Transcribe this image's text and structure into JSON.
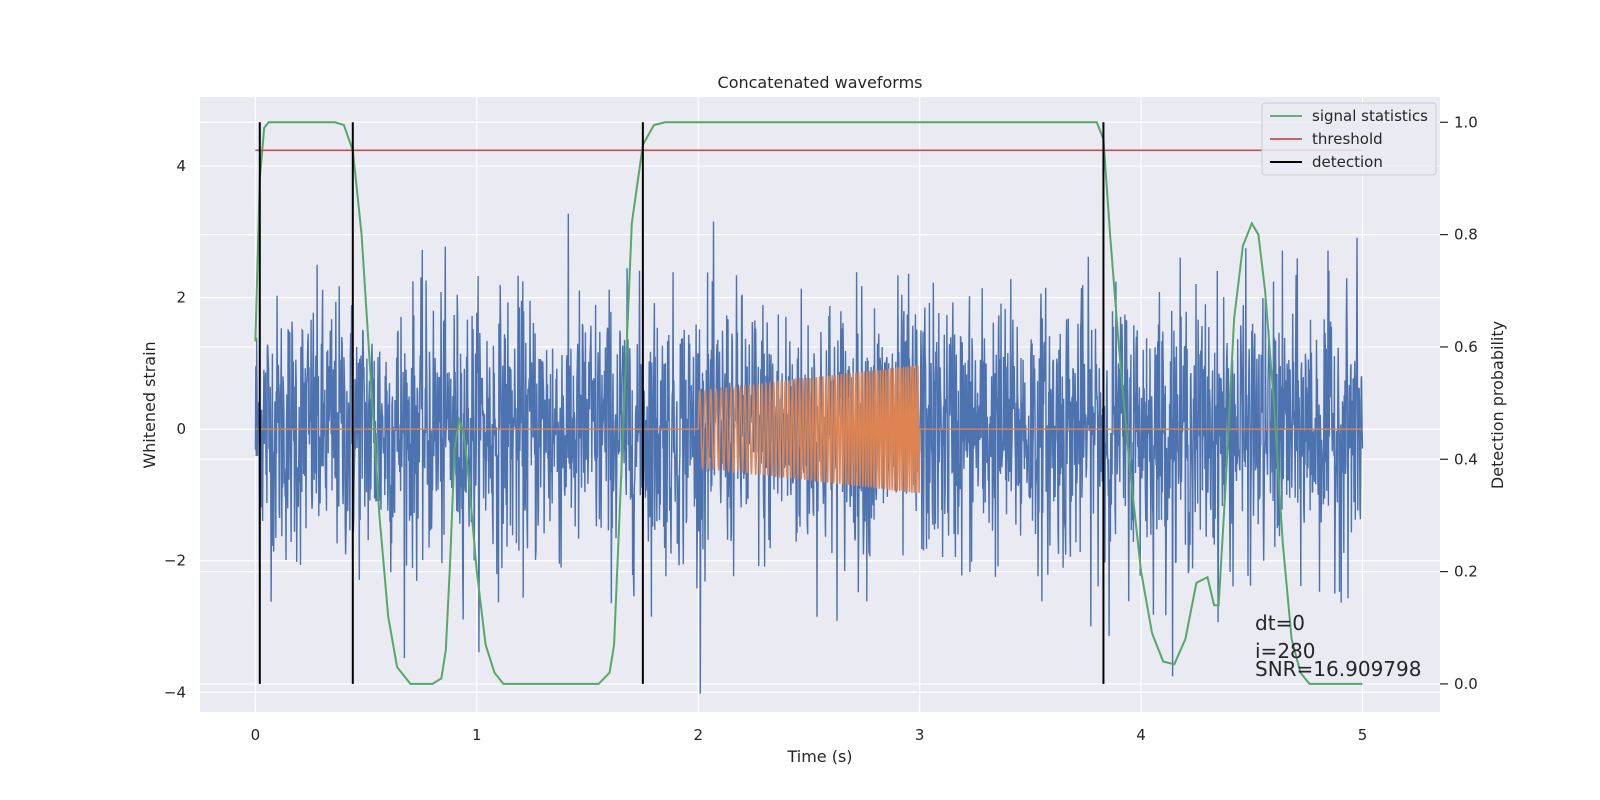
{
  "chart_data": {
    "type": "line",
    "title": "Concatenated waveforms",
    "xlabel": "Time (s)",
    "ylabel": "Whitened strain",
    "y2label": "Detection probability",
    "xlim": [
      -0.25,
      5.35
    ],
    "ylim": [
      -4.3,
      5.05
    ],
    "y2lim": [
      -0.05,
      1.045
    ],
    "xticks": [
      0,
      1,
      2,
      3,
      4,
      5
    ],
    "yticks": [
      -4,
      -2,
      0,
      2,
      4
    ],
    "y2ticks": [
      0.0,
      0.2,
      0.4,
      0.6,
      0.8,
      1.0
    ],
    "xtick_labels": [
      "0",
      "1",
      "2",
      "3",
      "4",
      "5"
    ],
    "ytick_labels": [
      "−4",
      "−2",
      "0",
      "2",
      "4"
    ],
    "y2tick_labels": [
      "0.0",
      "0.2",
      "0.4",
      "0.6",
      "0.8",
      "1.0"
    ],
    "grid": true,
    "legend_position": "top-right",
    "legend": [
      {
        "label": "signal statistics",
        "color": "#55a868"
      },
      {
        "label": "threshold",
        "color": "#c44e52"
      },
      {
        "label": "detection",
        "color": "#000000"
      }
    ],
    "colors": {
      "strain": "#4c72b0",
      "template": "#dd8452",
      "signal_statistics": "#55a868",
      "threshold": "#c44e52",
      "detection": "#000000",
      "axes_bg": "#eaeaf2"
    },
    "strain_noise": {
      "x_range": [
        0,
        5
      ],
      "typical_amplitude": 1.0,
      "peak_amplitude": 4.5
    },
    "template_chirp": {
      "x_range": [
        2.0,
        3.0
      ],
      "amplitude_start": 0.58,
      "amplitude_end": 0.98
    },
    "threshold": 0.95,
    "detections": [
      0.02,
      0.44,
      1.75,
      3.83
    ],
    "signal_statistics": {
      "x": [
        0,
        0.02,
        0.04,
        0.06,
        0.1,
        0.2,
        0.3,
        0.36,
        0.4,
        0.44,
        0.48,
        0.52,
        0.56,
        0.6,
        0.64,
        0.7,
        0.8,
        0.84,
        0.86,
        0.88,
        0.9,
        0.92,
        0.94,
        0.96,
        1.0,
        1.04,
        1.08,
        1.12,
        1.2,
        1.4,
        1.55,
        1.6,
        1.62,
        1.65,
        1.7,
        1.75,
        1.8,
        1.85,
        2.0,
        3.0,
        3.8,
        3.83,
        3.86,
        3.9,
        3.95,
        4.0,
        4.05,
        4.1,
        4.15,
        4.2,
        4.25,
        4.3,
        4.33,
        4.35,
        4.38,
        4.42,
        4.46,
        4.5,
        4.53,
        4.56,
        4.6,
        4.64,
        4.68,
        4.72,
        4.76,
        4.8,
        5.0
      ],
      "values": [
        0.61,
        0.9,
        0.99,
        1.0,
        1.0,
        1.0,
        1.0,
        1.0,
        0.995,
        0.95,
        0.8,
        0.55,
        0.3,
        0.12,
        0.03,
        0.0,
        0.0,
        0.01,
        0.06,
        0.22,
        0.42,
        0.47,
        0.45,
        0.38,
        0.2,
        0.07,
        0.02,
        0.0,
        0.0,
        0.0,
        0.0,
        0.02,
        0.07,
        0.35,
        0.82,
        0.96,
        0.995,
        1.0,
        1.0,
        1.0,
        1.0,
        0.97,
        0.8,
        0.6,
        0.38,
        0.2,
        0.09,
        0.04,
        0.035,
        0.08,
        0.18,
        0.19,
        0.14,
        0.14,
        0.34,
        0.65,
        0.78,
        0.82,
        0.8,
        0.7,
        0.5,
        0.25,
        0.08,
        0.02,
        0.0,
        0.0,
        0.0
      ]
    },
    "annotations": [
      "dt=0",
      "i=280",
      "SNR=16.909798"
    ]
  }
}
